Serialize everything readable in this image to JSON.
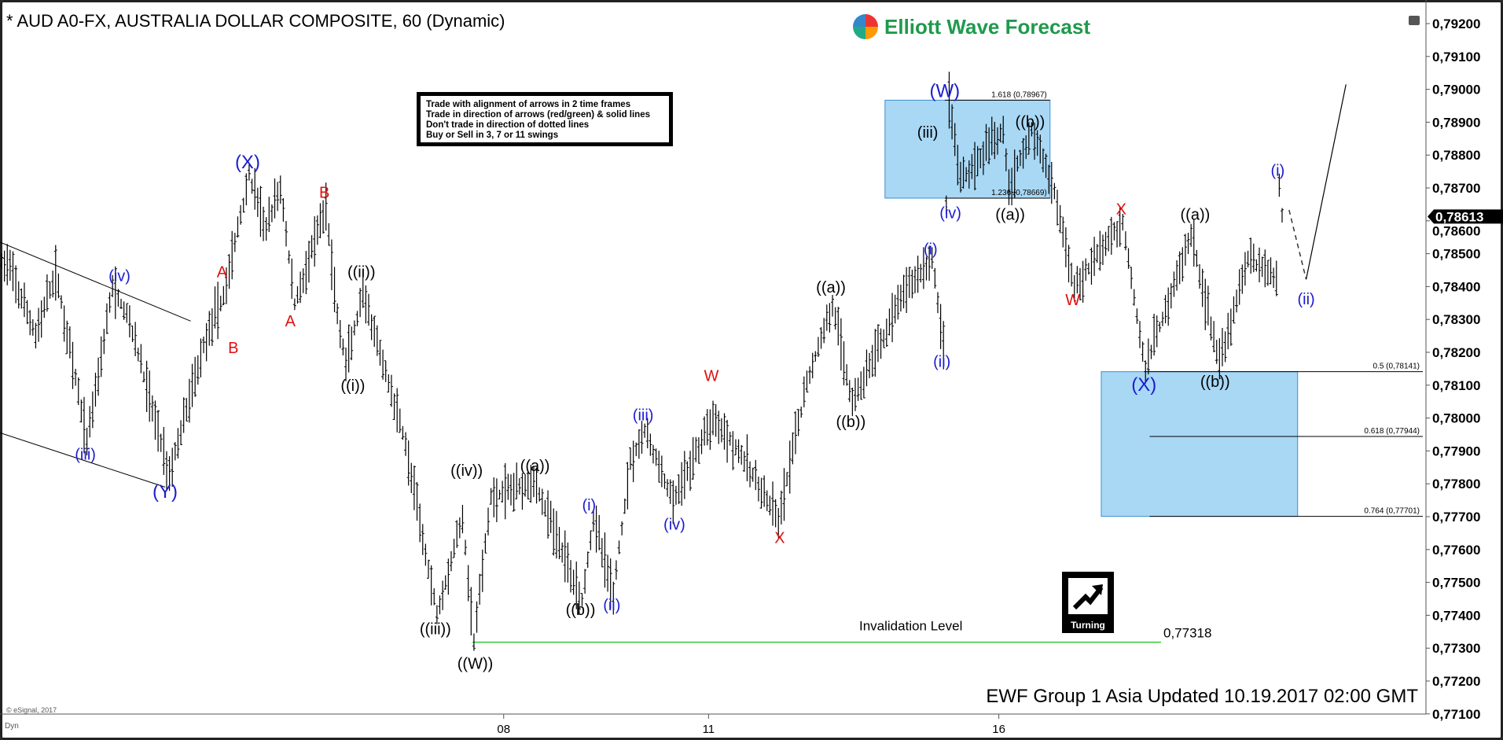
{
  "header": {
    "title": "* AUD A0-FX, AUSTRALIA DOLLAR COMPOSITE, 60 (Dynamic)",
    "logo_text": "Elliott Wave Forecast"
  },
  "rules": [
    "Trade with alignment of arrows in 2 time frames",
    "Trade in direction of arrows (red/green) & solid lines",
    "Don't trade in direction of dotted lines",
    "Buy or Sell in 3, 7 or 11 swings"
  ],
  "footer": {
    "updated": "EWF Group 1 Asia Updated 10.19.2017 02:00 GMT",
    "copyright": "© eSignal, 2017",
    "mode": "Dyn"
  },
  "turning_icon": {
    "label": "Turning"
  },
  "colors": {
    "blue_label": "#1c1ccf",
    "red_label": "#e01010",
    "black_label": "#000000",
    "box_fill": "#a9d8f5",
    "box_stroke": "#3a8fd0",
    "invalidation": "#33cc33",
    "last_price_bg": "#000000"
  },
  "chart_data": {
    "type": "ohlc",
    "interval": "60",
    "ylim": [
      0.771,
      0.792
    ],
    "y_ticks": [
      "0,79200",
      "0,79100",
      "0,79000",
      "0,78900",
      "0,78800",
      "0,78700",
      "0,78600",
      "0,78500",
      "0,78400",
      "0,78300",
      "0,78200",
      "0,78100",
      "0,78000",
      "0,77900",
      "0,77800",
      "0,77700",
      "0,77600",
      "0,77500",
      "0,77400",
      "0,77300",
      "0,77200",
      "0,77100"
    ],
    "y_tick_values": [
      0.792,
      0.791,
      0.79,
      0.789,
      0.788,
      0.787,
      0.786,
      0.785,
      0.784,
      0.783,
      0.782,
      0.781,
      0.78,
      0.779,
      0.778,
      0.777,
      0.776,
      0.775,
      0.774,
      0.773,
      0.772,
      0.771
    ],
    "x_ticks": [
      {
        "label": "08",
        "bar": 177
      },
      {
        "label": "11",
        "bar": 249
      },
      {
        "label": "16",
        "bar": 351
      }
    ],
    "last_price": {
      "label": "0,78613",
      "value": 0.78613
    },
    "price_path": [
      [
        2,
        0.78471
      ],
      [
        12,
        0.78252
      ],
      [
        19,
        0.78442
      ],
      [
        30,
        0.77931
      ],
      [
        39,
        0.78398
      ],
      [
        45,
        0.78296
      ],
      [
        59,
        0.77829
      ],
      [
        72,
        0.78252
      ],
      [
        78,
        0.78369
      ],
      [
        87,
        0.78739
      ],
      [
        93,
        0.78573
      ],
      [
        98,
        0.78704
      ],
      [
        103,
        0.78345
      ],
      [
        114,
        0.7864
      ],
      [
        118,
        0.7831
      ],
      [
        121,
        0.78164
      ],
      [
        127,
        0.78369
      ],
      [
        141,
        0.7796
      ],
      [
        153,
        0.77406
      ],
      [
        162,
        0.77698
      ],
      [
        166,
        0.77319
      ],
      [
        172,
        0.77756
      ],
      [
        187,
        0.77814
      ],
      [
        195,
        0.77639
      ],
      [
        204,
        0.7745
      ],
      [
        208,
        0.77698
      ],
      [
        215,
        0.77464
      ],
      [
        221,
        0.77873
      ],
      [
        226,
        0.7796
      ],
      [
        236,
        0.77742
      ],
      [
        250,
        0.78004
      ],
      [
        259,
        0.77902
      ],
      [
        273,
        0.77683
      ],
      [
        283,
        0.78106
      ],
      [
        292,
        0.78348
      ],
      [
        299,
        0.78048
      ],
      [
        318,
        0.78398
      ],
      [
        327,
        0.78485
      ],
      [
        331,
        0.78223
      ],
      [
        332,
        0.7866
      ],
      [
        333,
        0.78967
      ],
      [
        337,
        0.78719
      ],
      [
        352,
        0.78879
      ],
      [
        354,
        0.78704
      ],
      [
        362,
        0.78879
      ],
      [
        370,
        0.7869
      ],
      [
        377,
        0.78398
      ],
      [
        394,
        0.78596
      ],
      [
        402,
        0.7815
      ],
      [
        418,
        0.78558
      ],
      [
        428,
        0.78164
      ],
      [
        438,
        0.78485
      ],
      [
        448,
        0.78427
      ],
      [
        449,
        0.78704
      ],
      [
        450,
        0.78613
      ]
    ],
    "wave_labels": [
      {
        "text": "(iv)",
        "bar": 42,
        "price": 0.78433,
        "color": "blue"
      },
      {
        "text": "(iii)",
        "bar": 30,
        "price": 0.7789,
        "color": "blue"
      },
      {
        "text": "(Y)",
        "bar": 58,
        "price": 0.77774,
        "color": "blue"
      },
      {
        "text": "A",
        "bar": 78,
        "price": 0.78445,
        "color": "red"
      },
      {
        "text": "B",
        "bar": 82,
        "price": 0.78214,
        "color": "red"
      },
      {
        "text": "(X)",
        "bar": 87,
        "price": 0.78777,
        "color": "blue"
      },
      {
        "text": "B",
        "bar": 114,
        "price": 0.78687,
        "color": "red"
      },
      {
        "text": "A",
        "bar": 102,
        "price": 0.78296,
        "color": "red"
      },
      {
        "text": "((ii))",
        "bar": 127,
        "price": 0.78445,
        "color": "black"
      },
      {
        "text": "((i))",
        "bar": 124,
        "price": 0.781,
        "color": "black"
      },
      {
        "text": "((iii))",
        "bar": 153,
        "price": 0.77359,
        "color": "black"
      },
      {
        "text": "((iv))",
        "bar": 164,
        "price": 0.77841,
        "color": "black"
      },
      {
        "text": "((W))",
        "bar": 167,
        "price": 0.77254,
        "color": "black"
      },
      {
        "text": "((a))",
        "bar": 188,
        "price": 0.77855,
        "color": "black"
      },
      {
        "text": "((b))",
        "bar": 204,
        "price": 0.77418,
        "color": "black"
      },
      {
        "text": "(i)",
        "bar": 207,
        "price": 0.77736,
        "color": "blue"
      },
      {
        "text": "(ii)",
        "bar": 215,
        "price": 0.77432,
        "color": "blue"
      },
      {
        "text": "(iii)",
        "bar": 226,
        "price": 0.7801,
        "color": "blue"
      },
      {
        "text": "(iv)",
        "bar": 237,
        "price": 0.77677,
        "color": "blue"
      },
      {
        "text": "W",
        "bar": 250,
        "price": 0.78129,
        "color": "red"
      },
      {
        "text": "X",
        "bar": 274,
        "price": 0.77637,
        "color": "red"
      },
      {
        "text": "((a))",
        "bar": 292,
        "price": 0.78398,
        "color": "black"
      },
      {
        "text": "((b))",
        "bar": 299,
        "price": 0.77989,
        "color": "black"
      },
      {
        "text": "(i)",
        "bar": 327,
        "price": 0.78515,
        "color": "blue"
      },
      {
        "text": "(ii)",
        "bar": 331,
        "price": 0.78173,
        "color": "blue"
      },
      {
        "text": "(iv)",
        "bar": 334,
        "price": 0.78625,
        "color": "blue"
      },
      {
        "text": "(iii)",
        "bar": 326,
        "price": 0.7887,
        "color": "black"
      },
      {
        "text": "(W)",
        "bar": 332,
        "price": 0.78993,
        "color": "blue"
      },
      {
        "text": "((b))",
        "bar": 362,
        "price": 0.78902,
        "color": "black"
      },
      {
        "text": "((a))",
        "bar": 355,
        "price": 0.7862,
        "color": "black"
      },
      {
        "text": "W",
        "bar": 377,
        "price": 0.7836,
        "color": "red"
      },
      {
        "text": "X",
        "bar": 394,
        "price": 0.78637,
        "color": "red"
      },
      {
        "text": "(X)",
        "bar": 402,
        "price": 0.781,
        "color": "blue"
      },
      {
        "text": "((b))",
        "bar": 427,
        "price": 0.78112,
        "color": "black"
      },
      {
        "text": "((a))",
        "bar": 420,
        "price": 0.7862,
        "color": "black"
      },
      {
        "text": "(i)",
        "bar": 449,
        "price": 0.78754,
        "color": "blue"
      },
      {
        "text": "(ii)",
        "bar": 459,
        "price": 0.78363,
        "color": "blue"
      }
    ],
    "boxes": [
      {
        "bar_from": 311,
        "bar_to": 369,
        "price_top": 0.78967,
        "price_bottom": 0.78669
      },
      {
        "bar_from": 387,
        "bar_to": 456,
        "price_top": 0.78141,
        "price_bottom": 0.77701
      }
    ],
    "fib_levels": [
      {
        "label": "1.618 (0,78967)",
        "price": 0.78967,
        "bar_from": 332,
        "bar_to": 369
      },
      {
        "label": "1.236 (0,78669)",
        "price": 0.78669,
        "bar_from": 332,
        "bar_to": 369
      },
      {
        "label": "0.5 (0,78141)",
        "price": 0.78141,
        "bar_from": 402,
        "bar_to": 500
      },
      {
        "label": "0.618 (0,77944)",
        "price": 0.77944,
        "bar_from": 404,
        "bar_to": 500
      },
      {
        "label": "0.764 (0,77701)",
        "price": 0.77701,
        "bar_from": 404,
        "bar_to": 500
      }
    ],
    "invalidation": {
      "label": "Invalidation Level",
      "value_label": "0,77318",
      "price": 0.77318,
      "bar_from": 166,
      "bar_to": 408
    },
    "trendlines": [
      [
        [
          0,
          0.78535
        ],
        [
          67,
          0.78295
        ]
      ],
      [
        [
          0,
          0.77955
        ],
        [
          58,
          0.7779
        ]
      ]
    ],
    "projection": {
      "dashed": [
        [
          453,
          0.78633
        ],
        [
          459,
          0.78422
        ]
      ],
      "solid": [
        [
          459,
          0.78422
        ],
        [
          473,
          0.79015
        ]
      ]
    }
  }
}
